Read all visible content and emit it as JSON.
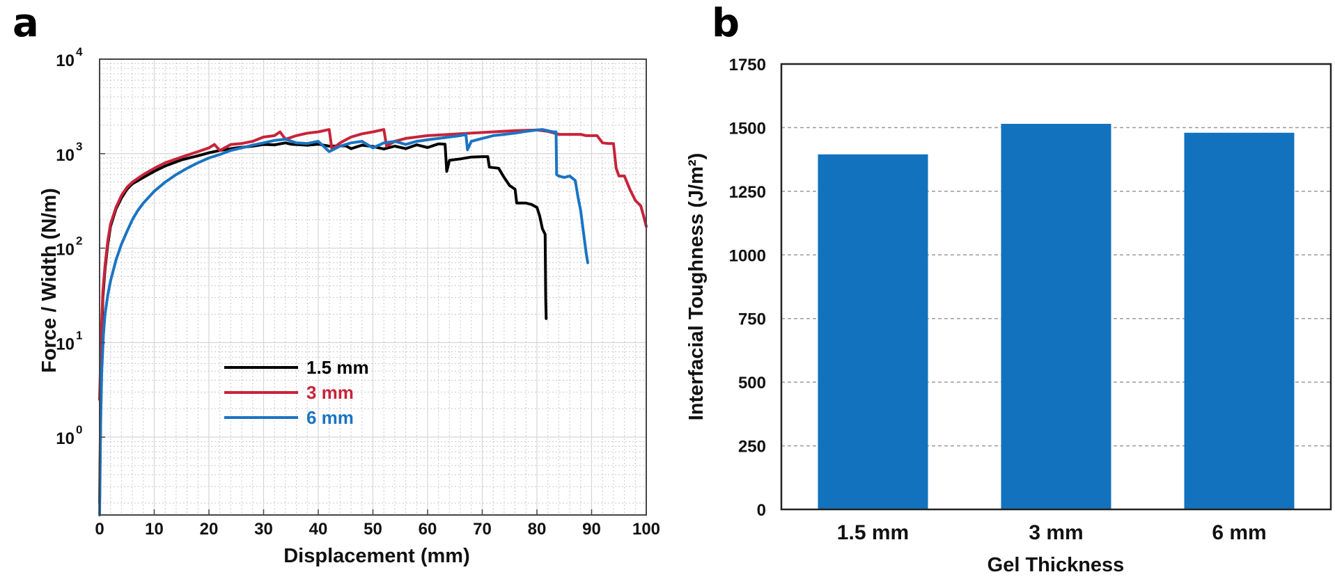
{
  "panels": {
    "a": "a",
    "b": "b"
  },
  "colors": {
    "series_1_5mm": "#000000",
    "series_3mm": "#c8233a",
    "series_6mm": "#1a74c2",
    "bar": "#1272bd"
  },
  "chart_data": [
    {
      "type": "line",
      "xlabel": "Displacement (mm)",
      "ylabel": "Force / Width (N/m)",
      "xlim": [
        0,
        100
      ],
      "ylim": [
        0.15,
        10000
      ],
      "yscale": "log",
      "grid": true,
      "legend_position": "lower-center",
      "x_ticks": [
        0,
        10,
        20,
        30,
        40,
        50,
        60,
        70,
        80,
        90,
        100
      ],
      "y_ticks": [
        {
          "value": 1,
          "base": "10",
          "exp": "0"
        },
        {
          "value": 10,
          "base": "10",
          "exp": "1"
        },
        {
          "value": 100,
          "base": "10",
          "exp": "2"
        },
        {
          "value": 1000,
          "base": "10",
          "exp": "3"
        },
        {
          "value": 10000,
          "base": "10",
          "exp": "4"
        }
      ],
      "series": [
        {
          "name": "1.5 mm",
          "color": "#000000",
          "points": [
            [
              0,
              0.2
            ],
            [
              0.3,
              8
            ],
            [
              0.6,
              30
            ],
            [
              1,
              60
            ],
            [
              1.5,
              110
            ],
            [
              2,
              170
            ],
            [
              3,
              260
            ],
            [
              4,
              340
            ],
            [
              5,
              420
            ],
            [
              6,
              480
            ],
            [
              8,
              560
            ],
            [
              10,
              650
            ],
            [
              12,
              740
            ],
            [
              15,
              860
            ],
            [
              18,
              950
            ],
            [
              20,
              1020
            ],
            [
              22,
              1080
            ],
            [
              25,
              1150
            ],
            [
              28,
              1200
            ],
            [
              30,
              1250
            ],
            [
              32,
              1240
            ],
            [
              34,
              1300
            ],
            [
              35,
              1260
            ],
            [
              38,
              1230
            ],
            [
              40,
              1260
            ],
            [
              42,
              1200
            ],
            [
              45,
              1210
            ],
            [
              46,
              1130
            ],
            [
              48,
              1230
            ],
            [
              50,
              1190
            ],
            [
              52,
              1120
            ],
            [
              54,
              1200
            ],
            [
              56,
              1130
            ],
            [
              58,
              1240
            ],
            [
              60,
              1160
            ],
            [
              62,
              1270
            ],
            [
              63.2,
              1260
            ],
            [
              63.5,
              650
            ],
            [
              64,
              850
            ],
            [
              66,
              880
            ],
            [
              68,
              920
            ],
            [
              70,
              930
            ],
            [
              71,
              930
            ],
            [
              71.3,
              720
            ],
            [
              73,
              700
            ],
            [
              74,
              560
            ],
            [
              75,
              460
            ],
            [
              76,
              420
            ],
            [
              76.3,
              300
            ],
            [
              78,
              300
            ],
            [
              79,
              290
            ],
            [
              80,
              270
            ],
            [
              80.5,
              220
            ],
            [
              81,
              160
            ],
            [
              81.5,
              140
            ],
            [
              81.6,
              30
            ],
            [
              81.7,
              18
            ]
          ]
        },
        {
          "name": "3 mm",
          "color": "#c8233a",
          "points": [
            [
              0,
              2.5
            ],
            [
              0.3,
              12
            ],
            [
              0.6,
              35
            ],
            [
              1,
              65
            ],
            [
              1.5,
              120
            ],
            [
              2,
              180
            ],
            [
              3,
              270
            ],
            [
              4,
              360
            ],
            [
              5,
              440
            ],
            [
              6,
              500
            ],
            [
              8,
              600
            ],
            [
              10,
              700
            ],
            [
              12,
              800
            ],
            [
              15,
              920
            ],
            [
              18,
              1050
            ],
            [
              20,
              1150
            ],
            [
              21,
              1250
            ],
            [
              22,
              1080
            ],
            [
              24,
              1250
            ],
            [
              26,
              1280
            ],
            [
              28,
              1350
            ],
            [
              30,
              1500
            ],
            [
              32,
              1550
            ],
            [
              33,
              1700
            ],
            [
              34,
              1420
            ],
            [
              36,
              1550
            ],
            [
              38,
              1650
            ],
            [
              40,
              1700
            ],
            [
              42,
              1800
            ],
            [
              42.5,
              1120
            ],
            [
              44,
              1300
            ],
            [
              46,
              1500
            ],
            [
              48,
              1620
            ],
            [
              50,
              1700
            ],
            [
              52,
              1800
            ],
            [
              52.5,
              1200
            ],
            [
              54,
              1350
            ],
            [
              56,
              1450
            ],
            [
              60,
              1550
            ],
            [
              64,
              1600
            ],
            [
              68,
              1650
            ],
            [
              72,
              1700
            ],
            [
              76,
              1750
            ],
            [
              80,
              1780
            ],
            [
              82,
              1720
            ],
            [
              84,
              1600
            ],
            [
              86,
              1600
            ],
            [
              88,
              1600
            ],
            [
              89,
              1550
            ],
            [
              90,
              1550
            ],
            [
              91,
              1550
            ],
            [
              92,
              1300
            ],
            [
              93,
              1280
            ],
            [
              94,
              1280
            ],
            [
              94.5,
              700
            ],
            [
              95,
              580
            ],
            [
              96,
              580
            ],
            [
              97,
              420
            ],
            [
              98,
              320
            ],
            [
              99,
              280
            ],
            [
              99.5,
              220
            ],
            [
              100,
              170
            ]
          ]
        },
        {
          "name": "6 mm",
          "color": "#1a74c2",
          "points": [
            [
              0,
              0.15
            ],
            [
              0.2,
              1.5
            ],
            [
              0.4,
              5
            ],
            [
              0.7,
              12
            ],
            [
              1,
              20
            ],
            [
              1.5,
              32
            ],
            [
              2,
              45
            ],
            [
              3,
              75
            ],
            [
              4,
              110
            ],
            [
              5,
              150
            ],
            [
              6,
              200
            ],
            [
              7,
              250
            ],
            [
              8,
              300
            ],
            [
              10,
              400
            ],
            [
              12,
              500
            ],
            [
              14,
              600
            ],
            [
              16,
              700
            ],
            [
              18,
              800
            ],
            [
              20,
              900
            ],
            [
              22,
              980
            ],
            [
              24,
              1080
            ],
            [
              26,
              1150
            ],
            [
              28,
              1230
            ],
            [
              30,
              1300
            ],
            [
              32,
              1380
            ],
            [
              34,
              1420
            ],
            [
              36,
              1300
            ],
            [
              38,
              1280
            ],
            [
              40,
              1350
            ],
            [
              42,
              1050
            ],
            [
              44,
              1200
            ],
            [
              46,
              1300
            ],
            [
              48,
              1350
            ],
            [
              50,
              1150
            ],
            [
              52,
              1300
            ],
            [
              54,
              1350
            ],
            [
              56,
              1250
            ],
            [
              58,
              1350
            ],
            [
              60,
              1400
            ],
            [
              62,
              1450
            ],
            [
              64,
              1500
            ],
            [
              66,
              1550
            ],
            [
              67,
              1600
            ],
            [
              67.3,
              1100
            ],
            [
              68,
              1350
            ],
            [
              70,
              1450
            ],
            [
              72,
              1550
            ],
            [
              74,
              1600
            ],
            [
              76,
              1650
            ],
            [
              78,
              1720
            ],
            [
              80,
              1780
            ],
            [
              81,
              1800
            ],
            [
              82,
              1750
            ],
            [
              83,
              1700
            ],
            [
              83.5,
              1700
            ],
            [
              83.6,
              600
            ],
            [
              84,
              580
            ],
            [
              85,
              560
            ],
            [
              86,
              580
            ],
            [
              87,
              520
            ],
            [
              87.5,
              350
            ],
            [
              88,
              250
            ],
            [
              88.5,
              150
            ],
            [
              89,
              90
            ],
            [
              89.3,
              70
            ]
          ]
        }
      ]
    },
    {
      "type": "bar",
      "xlabel": "Gel Thickness",
      "ylabel": "Interfacial  Toughness (J/m²)",
      "ylim": [
        0,
        1750
      ],
      "y_ticks": [
        0,
        250,
        500,
        750,
        1000,
        1250,
        1500,
        1750
      ],
      "grid": true,
      "categories": [
        "1.5 mm",
        "3 mm",
        "6 mm"
      ],
      "values": [
        1395,
        1515,
        1480
      ],
      "color": "#1272bd"
    }
  ]
}
